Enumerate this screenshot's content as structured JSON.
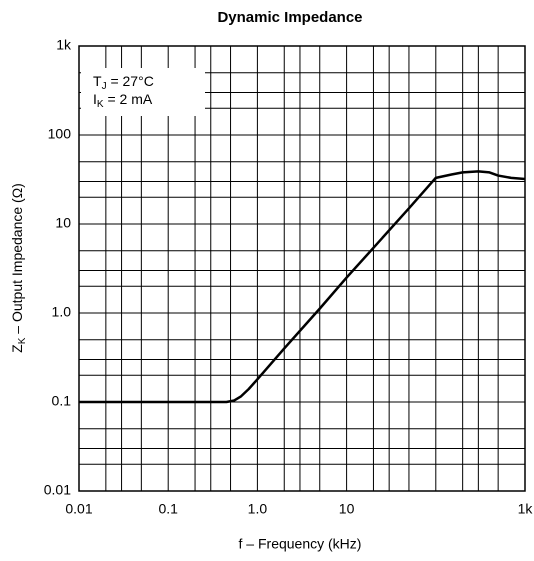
{
  "chart_data": {
    "type": "line",
    "title": "Dynamic Impedance",
    "x_label": "f –  Frequency (kHz)",
    "y_label": {
      "main": "Z",
      "sub": "K",
      "rest": " – Output Impedance (Ω)"
    },
    "annotations": [
      {
        "main": "T",
        "sub": "J",
        "rest": " = 27°C"
      },
      {
        "main": "I",
        "sub": "K",
        "rest": " = 2 mA"
      }
    ],
    "log_x": true,
    "log_y": true,
    "grid": true,
    "xlim": [
      0.01,
      1000
    ],
    "ylim": [
      0.01,
      1000
    ],
    "xticks": [
      0.01,
      0.1,
      {
        "value": 1,
        "label": "1.0"
      },
      10,
      {
        "value": 100,
        "label": ""
      },
      {
        "value": 1000,
        "label": "1k"
      }
    ],
    "yticks": [
      0.01,
      0.1,
      {
        "value": 1,
        "label": "1.0"
      },
      10,
      100,
      {
        "value": 1000,
        "label": "1k"
      }
    ],
    "x_minor_ticks": [
      0.02,
      0.03,
      0.05,
      0.2,
      0.3,
      0.5,
      2,
      3,
      5,
      20,
      30,
      50,
      200,
      300,
      500
    ],
    "y_minor_ticks": [
      0.02,
      0.03,
      0.05,
      0.2,
      0.3,
      0.5,
      2,
      3,
      5,
      20,
      30,
      50,
      200,
      300,
      500
    ],
    "x": [
      0.01,
      0.1,
      0.3,
      0.45,
      0.55,
      0.65,
      0.8,
      1,
      2,
      5,
      10,
      20,
      50,
      100,
      150,
      200,
      300,
      400,
      500,
      700,
      1000
    ],
    "series": [
      {
        "name": "Output Impedance",
        "color": "#000000",
        "values": [
          0.1,
          0.1,
          0.1,
          0.1,
          0.104,
          0.115,
          0.14,
          0.18,
          0.4,
          1.12,
          2.5,
          5.4,
          15,
          33,
          36,
          38,
          39,
          38,
          35,
          33,
          32
        ]
      }
    ]
  }
}
